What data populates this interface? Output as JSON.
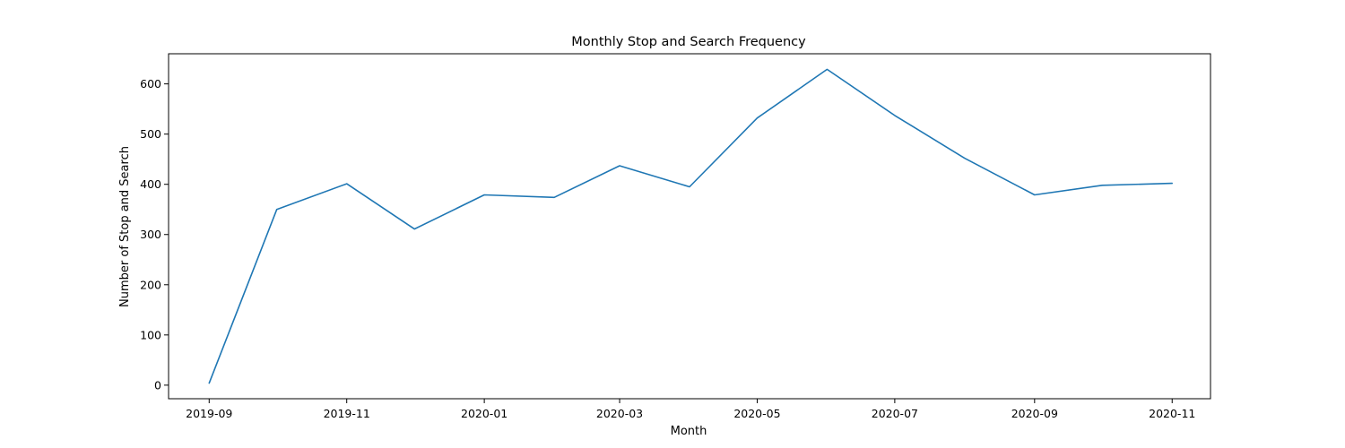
{
  "chart_data": {
    "type": "line",
    "title": "Monthly Stop and Search Frequency",
    "xlabel": "Month",
    "ylabel": "Number of Stop and Search",
    "x": [
      "2019-09",
      "2019-10",
      "2019-11",
      "2019-12",
      "2020-01",
      "2020-02",
      "2020-03",
      "2020-04",
      "2020-05",
      "2020-06",
      "2020-07",
      "2020-08",
      "2020-09",
      "2020-10",
      "2020-11"
    ],
    "series": [
      {
        "values": [
          4,
          350,
          401,
          311,
          379,
          374,
          437,
          395,
          532,
          629,
          537,
          452,
          379,
          398,
          402
        ],
        "color": "#1f77b4"
      }
    ],
    "x_ticks": [
      "2019-09",
      "2019-11",
      "2020-01",
      "2020-03",
      "2020-05",
      "2020-07",
      "2020-09",
      "2020-11"
    ],
    "y_ticks": [
      0,
      100,
      200,
      300,
      400,
      500,
      600
    ],
    "ylim": [
      -27,
      660
    ],
    "xlim": [
      "2019-08-14",
      "2020-11-18"
    ],
    "grid": false
  }
}
